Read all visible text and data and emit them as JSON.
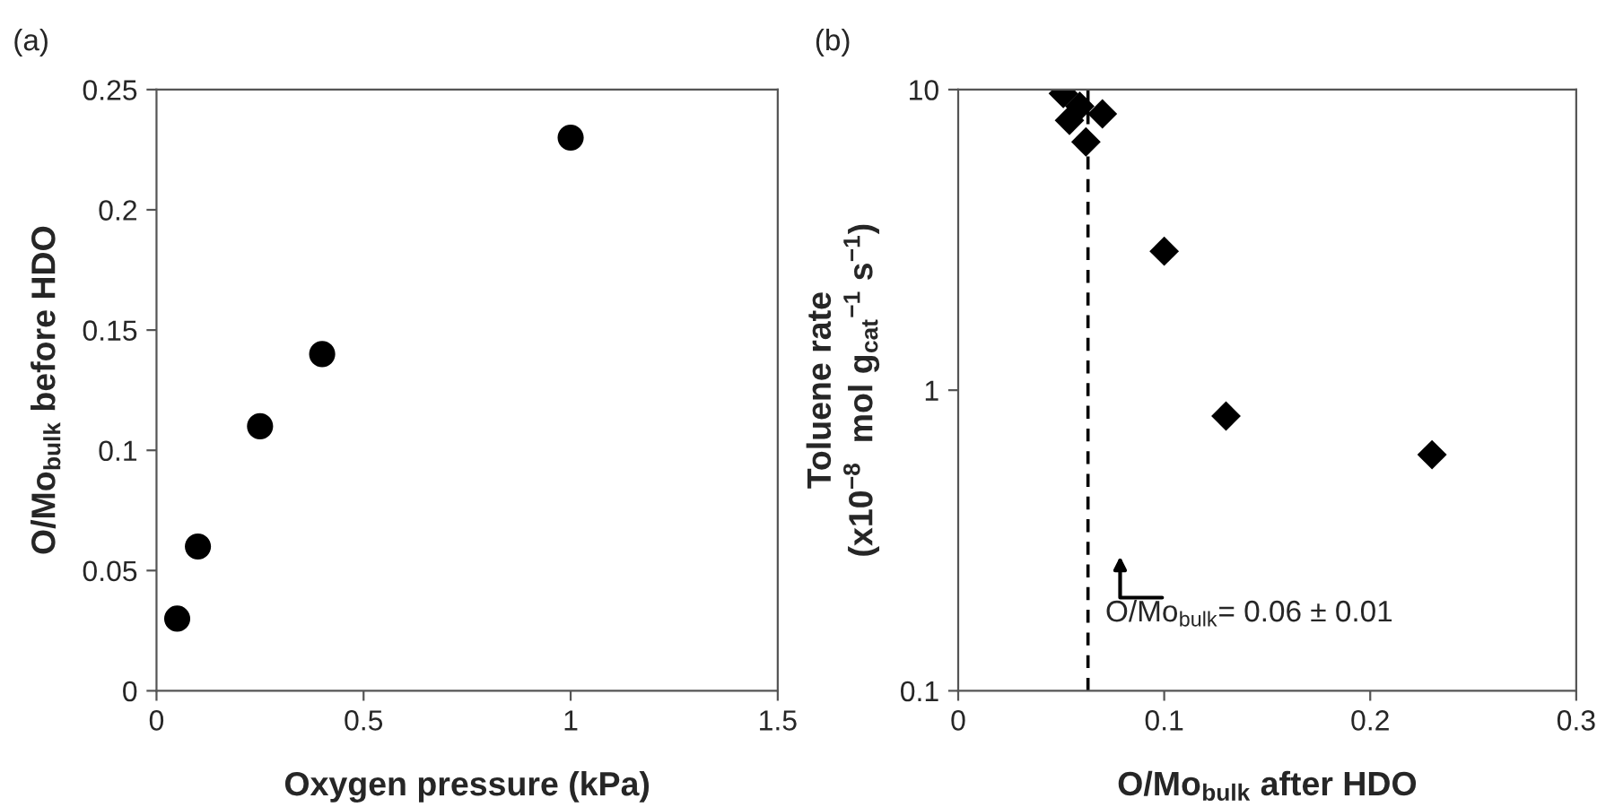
{
  "chart_data": [
    {
      "type": "scatter",
      "title": "(a)",
      "xlabel": "Oxygen pressure (kPa)",
      "ylabel": "O/Mo$_{bulk}$ before HDO",
      "x": [
        0.05,
        0.1,
        0.25,
        0.4,
        1.0
      ],
      "series": [
        {
          "color": "#000000",
          "values": [
            0.03,
            0.06,
            0.11,
            0.14,
            0.23
          ]
        }
      ],
      "marker": "circle",
      "grid": false,
      "legend": false,
      "xlim": [
        0,
        1.5
      ],
      "xticks": [
        0,
        0.5,
        1,
        1.5
      ],
      "ylim": [
        0,
        0.25
      ],
      "yticks": [
        0,
        0.05,
        0.1,
        0.15,
        0.2,
        0.25
      ]
    },
    {
      "type": "scatter",
      "title": "(b)",
      "xlabel": "O/Mo$_{bulk}$ after HDO",
      "ylabel": "Toluene rate\n(x10$^{−8}$  mol g$_{cat}$$^{−1}$ s$^{−1}$)",
      "x": [
        0.051,
        0.054,
        0.059,
        0.062,
        0.07,
        0.1,
        0.13,
        0.23
      ],
      "series": [
        {
          "color": "#000000",
          "values": [
            9.7,
            7.9,
            8.8,
            6.7,
            8.3,
            2.9,
            0.82,
            0.61
          ]
        }
      ],
      "marker": "diamond",
      "grid": false,
      "legend": false,
      "log": "y",
      "xlim": [
        0,
        0.3
      ],
      "xticks": [
        0,
        0.1,
        0.2,
        0.3
      ],
      "ylim": [
        0.1,
        10
      ],
      "yticks": [
        0.1,
        1,
        10
      ],
      "ref_lines": [
        {
          "axis": "x",
          "value": 0.063,
          "color": "#000000",
          "line_style": "dashed"
        }
      ],
      "annotations": [
        "O/Mo$_{bulk}$= 0.06 ± 0.01"
      ]
    }
  ]
}
